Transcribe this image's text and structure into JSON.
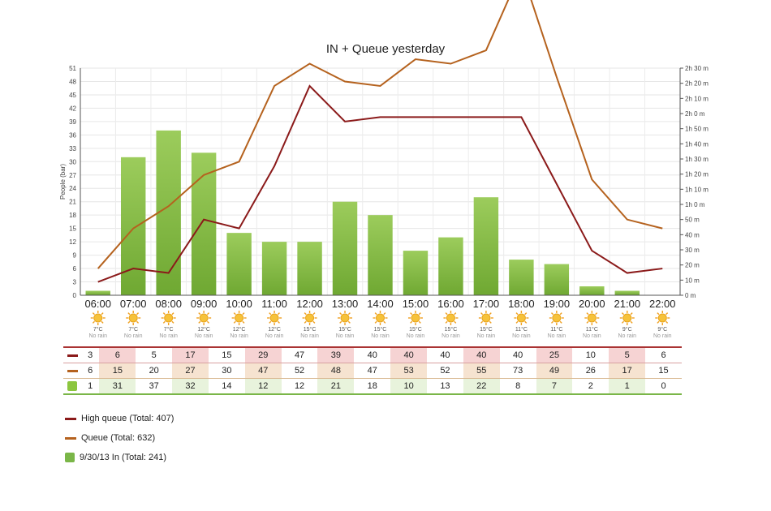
{
  "chart_data": {
    "type": "bar+line",
    "title": "IN + Queue yesterday",
    "ylabel": "People (bar)",
    "ylim": [
      0,
      51
    ],
    "y_ticks": [
      "0",
      "3",
      "6",
      "9",
      "12",
      "15",
      "18",
      "21",
      "24",
      "27",
      "30",
      "33",
      "36",
      "39",
      "42",
      "45",
      "48",
      "51"
    ],
    "y2_ticks": [
      "0 m",
      "10 m",
      "20 m",
      "30 m",
      "40 m",
      "50 m",
      "1h 0 m",
      "1h 10 m",
      "1h 20 m",
      "1h 30 m",
      "1h 40 m",
      "1h 50 m",
      "2h 0 m",
      "2h 10 m",
      "2h 20 m",
      "2h 30 m"
    ],
    "y2_range_minutes": [
      0,
      150
    ],
    "categories": [
      "06:00",
      "07:00",
      "08:00",
      "09:00",
      "10:00",
      "11:00",
      "12:00",
      "13:00",
      "14:00",
      "15:00",
      "16:00",
      "17:00",
      "18:00",
      "19:00",
      "20:00",
      "21:00",
      "22:00"
    ],
    "weather_temps": [
      "7°C",
      "7°C",
      "7°C",
      "12°C",
      "12°C",
      "12°C",
      "15°C",
      "15°C",
      "15°C",
      "15°C",
      "15°C",
      "15°C",
      "11°C",
      "11°C",
      "11°C",
      "9°C",
      "9°C"
    ],
    "weather_rain": "No rain",
    "series": [
      {
        "name": "High queue",
        "type": "line",
        "color": "#8b1a1a",
        "values": [
          3,
          6,
          5,
          17,
          15,
          29,
          47,
          39,
          40,
          40,
          40,
          40,
          40,
          25,
          10,
          5,
          6
        ],
        "shaded": [
          false,
          true,
          false,
          true,
          false,
          true,
          false,
          true,
          false,
          true,
          false,
          true,
          false,
          true,
          false,
          true,
          false
        ]
      },
      {
        "name": "Queue",
        "type": "line",
        "color": "#b5621e",
        "values": [
          6,
          15,
          20,
          27,
          30,
          47,
          52,
          48,
          47,
          53,
          52,
          55,
          73,
          49,
          26,
          17,
          15
        ],
        "shaded": [
          false,
          true,
          false,
          true,
          false,
          true,
          false,
          true,
          false,
          true,
          false,
          true,
          false,
          true,
          false,
          true,
          false
        ]
      },
      {
        "name": "9/30/13 In",
        "type": "bar",
        "color": "#8cc63f",
        "values": [
          1,
          31,
          37,
          32,
          14,
          12,
          12,
          21,
          18,
          10,
          13,
          22,
          8,
          7,
          2,
          1,
          0
        ],
        "shaded": [
          false,
          true,
          false,
          true,
          false,
          true,
          false,
          true,
          false,
          true,
          false,
          true,
          false,
          true,
          false,
          true,
          false
        ]
      }
    ],
    "legend": [
      {
        "label": "High queue (Total: 407)",
        "marker": "line",
        "color": "#8b1a1a"
      },
      {
        "label": "Queue (Total: 632)",
        "marker": "line",
        "color": "#b5621e"
      },
      {
        "label": "9/30/13 In (Total: 241)",
        "marker": "box",
        "color": "#7ab648"
      }
    ],
    "grid": true,
    "legend_placement": "bottom-left"
  }
}
